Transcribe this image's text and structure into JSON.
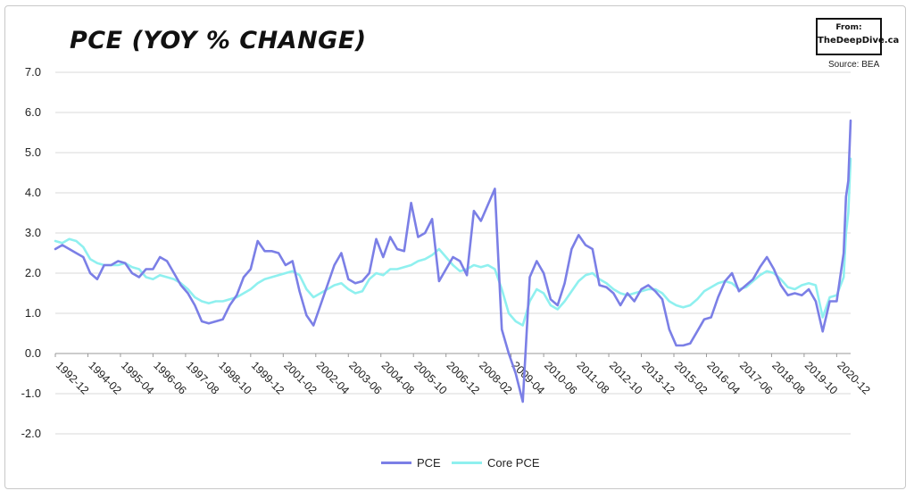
{
  "title": "PCE (YOY % CHANGE)",
  "logo": {
    "line1": "From:",
    "line2": "TheDeepDive.ca"
  },
  "source": "Source: BEA",
  "colors": {
    "pce": "#7b7fe6",
    "core": "#8ff0ef",
    "grid": "#d9d9d9",
    "axis": "#222222"
  },
  "chart_data": {
    "type": "line",
    "title": "PCE (YOY % CHANGE)",
    "xlabel": "",
    "ylabel": "",
    "ylim": [
      -2.0,
      7.0
    ],
    "yticks": [
      "7.0",
      "6.0",
      "5.0",
      "4.0",
      "3.0",
      "2.0",
      "1.0",
      "0.0",
      "-1.0",
      "-2.0"
    ],
    "x_tick_labels": [
      "1992-12",
      "1994-02",
      "1995-04",
      "1996-06",
      "1997-08",
      "1998-10",
      "1999-12",
      "2001-02",
      "2002-04",
      "2003-06",
      "2004-08",
      "2005-10",
      "2006-12",
      "2008-02",
      "2009-04",
      "2010-06",
      "2011-08",
      "2012-10",
      "2013-12",
      "2015-02",
      "2016-04",
      "2017-06",
      "2018-08",
      "2019-10",
      "2020-12"
    ],
    "x_start": "1992-12",
    "x_end": "2021-06",
    "grid": "horizontal",
    "legend_position": "bottom",
    "series": [
      {
        "name": "PCE",
        "points": [
          [
            "1992-12",
            2.6
          ],
          [
            "1993-03",
            2.7
          ],
          [
            "1993-06",
            2.6
          ],
          [
            "1993-09",
            2.5
          ],
          [
            "1993-12",
            2.4
          ],
          [
            "1994-03",
            2.0
          ],
          [
            "1994-06",
            1.85
          ],
          [
            "1994-09",
            2.2
          ],
          [
            "1994-12",
            2.2
          ],
          [
            "1995-03",
            2.3
          ],
          [
            "1995-06",
            2.25
          ],
          [
            "1995-09",
            2.0
          ],
          [
            "1995-12",
            1.9
          ],
          [
            "1996-03",
            2.1
          ],
          [
            "1996-06",
            2.1
          ],
          [
            "1996-09",
            2.4
          ],
          [
            "1996-12",
            2.3
          ],
          [
            "1997-03",
            2.0
          ],
          [
            "1997-06",
            1.7
          ],
          [
            "1997-09",
            1.5
          ],
          [
            "1997-12",
            1.2
          ],
          [
            "1998-03",
            0.8
          ],
          [
            "1998-06",
            0.75
          ],
          [
            "1998-09",
            0.8
          ],
          [
            "1998-12",
            0.85
          ],
          [
            "1999-03",
            1.2
          ],
          [
            "1999-06",
            1.45
          ],
          [
            "1999-09",
            1.9
          ],
          [
            "1999-12",
            2.1
          ],
          [
            "2000-03",
            2.8
          ],
          [
            "2000-06",
            2.55
          ],
          [
            "2000-09",
            2.55
          ],
          [
            "2000-12",
            2.5
          ],
          [
            "2001-03",
            2.2
          ],
          [
            "2001-06",
            2.3
          ],
          [
            "2001-09",
            1.55
          ],
          [
            "2001-12",
            0.95
          ],
          [
            "2002-03",
            0.7
          ],
          [
            "2002-06",
            1.2
          ],
          [
            "2002-09",
            1.7
          ],
          [
            "2002-12",
            2.2
          ],
          [
            "2003-03",
            2.5
          ],
          [
            "2003-06",
            1.85
          ],
          [
            "2003-09",
            1.75
          ],
          [
            "2003-12",
            1.8
          ],
          [
            "2004-03",
            2.0
          ],
          [
            "2004-06",
            2.85
          ],
          [
            "2004-09",
            2.4
          ],
          [
            "2004-12",
            2.9
          ],
          [
            "2005-03",
            2.6
          ],
          [
            "2005-06",
            2.55
          ],
          [
            "2005-09",
            3.75
          ],
          [
            "2005-12",
            2.9
          ],
          [
            "2006-03",
            3.0
          ],
          [
            "2006-06",
            3.35
          ],
          [
            "2006-09",
            1.8
          ],
          [
            "2006-12",
            2.1
          ],
          [
            "2007-03",
            2.4
          ],
          [
            "2007-06",
            2.3
          ],
          [
            "2007-09",
            1.95
          ],
          [
            "2007-12",
            3.55
          ],
          [
            "2008-03",
            3.3
          ],
          [
            "2008-06",
            3.7
          ],
          [
            "2008-09",
            4.1
          ],
          [
            "2008-12",
            0.6
          ],
          [
            "2009-03",
            0.0
          ],
          [
            "2009-06",
            -0.5
          ],
          [
            "2009-09",
            -1.2
          ],
          [
            "2009-12",
            1.9
          ],
          [
            "2010-03",
            2.3
          ],
          [
            "2010-06",
            2.0
          ],
          [
            "2010-09",
            1.35
          ],
          [
            "2010-12",
            1.2
          ],
          [
            "2011-03",
            1.75
          ],
          [
            "2011-06",
            2.6
          ],
          [
            "2011-09",
            2.95
          ],
          [
            "2011-12",
            2.7
          ],
          [
            "2012-03",
            2.6
          ],
          [
            "2012-06",
            1.7
          ],
          [
            "2012-09",
            1.65
          ],
          [
            "2012-12",
            1.5
          ],
          [
            "2013-03",
            1.2
          ],
          [
            "2013-06",
            1.5
          ],
          [
            "2013-09",
            1.3
          ],
          [
            "2013-12",
            1.6
          ],
          [
            "2014-03",
            1.7
          ],
          [
            "2014-06",
            1.55
          ],
          [
            "2014-09",
            1.35
          ],
          [
            "2014-12",
            0.6
          ],
          [
            "2015-03",
            0.2
          ],
          [
            "2015-06",
            0.2
          ],
          [
            "2015-09",
            0.25
          ],
          [
            "2015-12",
            0.55
          ],
          [
            "2016-03",
            0.85
          ],
          [
            "2016-06",
            0.9
          ],
          [
            "2016-09",
            1.4
          ],
          [
            "2016-12",
            1.8
          ],
          [
            "2017-03",
            2.0
          ],
          [
            "2017-06",
            1.55
          ],
          [
            "2017-09",
            1.7
          ],
          [
            "2017-12",
            1.85
          ],
          [
            "2018-03",
            2.15
          ],
          [
            "2018-06",
            2.4
          ],
          [
            "2018-09",
            2.1
          ],
          [
            "2018-12",
            1.7
          ],
          [
            "2019-03",
            1.45
          ],
          [
            "2019-06",
            1.5
          ],
          [
            "2019-09",
            1.45
          ],
          [
            "2019-12",
            1.6
          ],
          [
            "2020-03",
            1.3
          ],
          [
            "2020-06",
            0.55
          ],
          [
            "2020-09",
            1.3
          ],
          [
            "2020-12",
            1.3
          ],
          [
            "2021-03",
            2.5
          ],
          [
            "2021-04",
            3.9
          ],
          [
            "2021-05",
            4.3
          ],
          [
            "2021-06",
            5.8
          ]
        ]
      },
      {
        "name": "Core PCE",
        "points": [
          [
            "1992-12",
            2.8
          ],
          [
            "1993-03",
            2.75
          ],
          [
            "1993-06",
            2.85
          ],
          [
            "1993-09",
            2.8
          ],
          [
            "1993-12",
            2.65
          ],
          [
            "1994-03",
            2.35
          ],
          [
            "1994-06",
            2.25
          ],
          [
            "1994-09",
            2.2
          ],
          [
            "1994-12",
            2.2
          ],
          [
            "1995-03",
            2.2
          ],
          [
            "1995-06",
            2.25
          ],
          [
            "1995-09",
            2.15
          ],
          [
            "1995-12",
            2.1
          ],
          [
            "1996-03",
            1.9
          ],
          [
            "1996-06",
            1.85
          ],
          [
            "1996-09",
            1.95
          ],
          [
            "1996-12",
            1.9
          ],
          [
            "1997-03",
            1.85
          ],
          [
            "1997-06",
            1.75
          ],
          [
            "1997-09",
            1.6
          ],
          [
            "1997-12",
            1.4
          ],
          [
            "1998-03",
            1.3
          ],
          [
            "1998-06",
            1.25
          ],
          [
            "1998-09",
            1.3
          ],
          [
            "1998-12",
            1.3
          ],
          [
            "1999-03",
            1.35
          ],
          [
            "1999-06",
            1.4
          ],
          [
            "1999-09",
            1.5
          ],
          [
            "1999-12",
            1.6
          ],
          [
            "2000-03",
            1.75
          ],
          [
            "2000-06",
            1.85
          ],
          [
            "2000-09",
            1.9
          ],
          [
            "2000-12",
            1.95
          ],
          [
            "2001-03",
            2.0
          ],
          [
            "2001-06",
            2.05
          ],
          [
            "2001-09",
            1.95
          ],
          [
            "2001-12",
            1.6
          ],
          [
            "2002-03",
            1.4
          ],
          [
            "2002-06",
            1.5
          ],
          [
            "2002-09",
            1.6
          ],
          [
            "2002-12",
            1.7
          ],
          [
            "2003-03",
            1.75
          ],
          [
            "2003-06",
            1.6
          ],
          [
            "2003-09",
            1.5
          ],
          [
            "2003-12",
            1.55
          ],
          [
            "2004-03",
            1.85
          ],
          [
            "2004-06",
            2.0
          ],
          [
            "2004-09",
            1.95
          ],
          [
            "2004-12",
            2.1
          ],
          [
            "2005-03",
            2.1
          ],
          [
            "2005-06",
            2.15
          ],
          [
            "2005-09",
            2.2
          ],
          [
            "2005-12",
            2.3
          ],
          [
            "2006-03",
            2.35
          ],
          [
            "2006-06",
            2.45
          ],
          [
            "2006-09",
            2.6
          ],
          [
            "2006-12",
            2.4
          ],
          [
            "2007-03",
            2.2
          ],
          [
            "2007-06",
            2.05
          ],
          [
            "2007-09",
            2.1
          ],
          [
            "2007-12",
            2.2
          ],
          [
            "2008-03",
            2.15
          ],
          [
            "2008-06",
            2.2
          ],
          [
            "2008-09",
            2.1
          ],
          [
            "2008-12",
            1.6
          ],
          [
            "2009-03",
            1.0
          ],
          [
            "2009-06",
            0.8
          ],
          [
            "2009-09",
            0.7
          ],
          [
            "2009-12",
            1.3
          ],
          [
            "2010-03",
            1.6
          ],
          [
            "2010-06",
            1.5
          ],
          [
            "2010-09",
            1.2
          ],
          [
            "2010-12",
            1.1
          ],
          [
            "2011-03",
            1.3
          ],
          [
            "2011-06",
            1.55
          ],
          [
            "2011-09",
            1.8
          ],
          [
            "2011-12",
            1.95
          ],
          [
            "2012-03",
            2.0
          ],
          [
            "2012-06",
            1.85
          ],
          [
            "2012-09",
            1.75
          ],
          [
            "2012-12",
            1.6
          ],
          [
            "2013-03",
            1.5
          ],
          [
            "2013-06",
            1.45
          ],
          [
            "2013-09",
            1.5
          ],
          [
            "2013-12",
            1.55
          ],
          [
            "2014-03",
            1.6
          ],
          [
            "2014-06",
            1.6
          ],
          [
            "2014-09",
            1.5
          ],
          [
            "2014-12",
            1.3
          ],
          [
            "2015-03",
            1.2
          ],
          [
            "2015-06",
            1.15
          ],
          [
            "2015-09",
            1.2
          ],
          [
            "2015-12",
            1.35
          ],
          [
            "2016-03",
            1.55
          ],
          [
            "2016-06",
            1.65
          ],
          [
            "2016-09",
            1.75
          ],
          [
            "2016-12",
            1.8
          ],
          [
            "2017-03",
            1.75
          ],
          [
            "2017-06",
            1.6
          ],
          [
            "2017-09",
            1.65
          ],
          [
            "2017-12",
            1.8
          ],
          [
            "2018-03",
            1.95
          ],
          [
            "2018-06",
            2.05
          ],
          [
            "2018-09",
            2.0
          ],
          [
            "2018-12",
            1.85
          ],
          [
            "2019-03",
            1.65
          ],
          [
            "2019-06",
            1.6
          ],
          [
            "2019-09",
            1.7
          ],
          [
            "2019-12",
            1.75
          ],
          [
            "2020-03",
            1.7
          ],
          [
            "2020-06",
            0.9
          ],
          [
            "2020-09",
            1.4
          ],
          [
            "2020-12",
            1.45
          ],
          [
            "2021-03",
            1.9
          ],
          [
            "2021-04",
            3.0
          ],
          [
            "2021-05",
            3.5
          ],
          [
            "2021-06",
            4.85
          ]
        ]
      }
    ]
  },
  "legend": [
    {
      "label": "PCE"
    },
    {
      "label": "Core PCE"
    }
  ]
}
